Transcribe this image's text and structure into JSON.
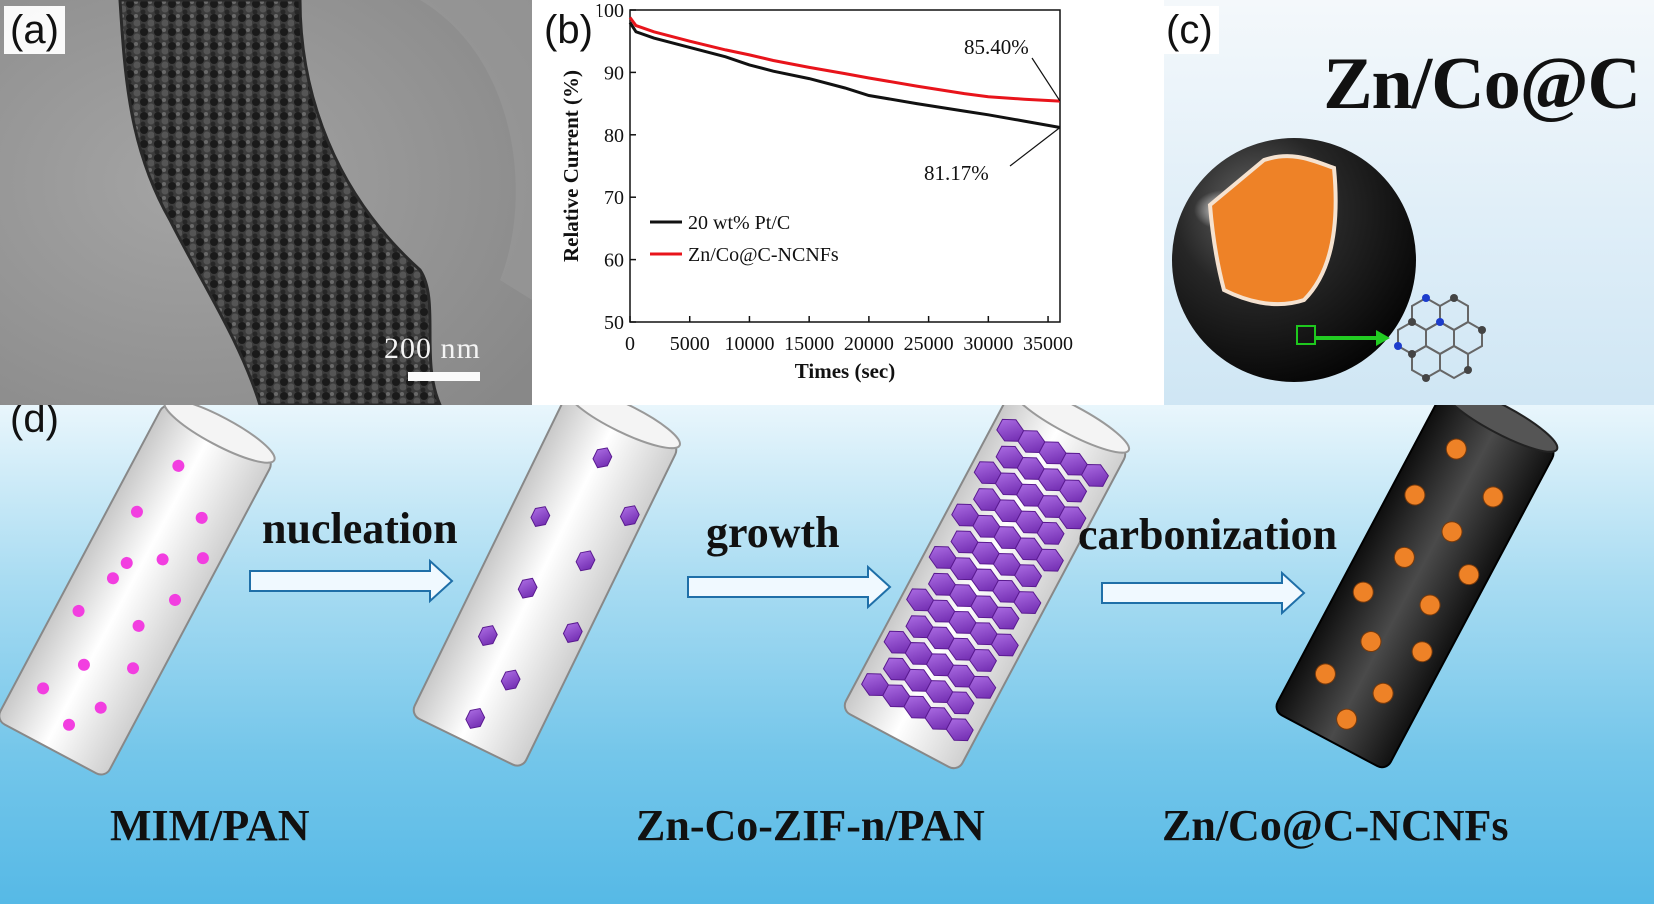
{
  "panels": {
    "a": {
      "label": "(a)",
      "scale_text": "200 nm"
    },
    "b": {
      "label": "(b)"
    },
    "c": {
      "label": "(c)",
      "title": "Zn/Co@C"
    },
    "d": {
      "label": "(d)",
      "steps": [
        "nucleation",
        "growth",
        "carbonization"
      ],
      "materials": [
        "MIM/PAN",
        "Zn-Co-ZIF-n/PAN",
        "Zn/Co@C-NCNFs"
      ]
    }
  },
  "chart_data": {
    "type": "line",
    "title": "",
    "xlabel": "Times (sec)",
    "ylabel": "Relative Current (%)",
    "xlim": [
      0,
      36000
    ],
    "ylim": [
      50,
      100
    ],
    "xticks": [
      0,
      5000,
      10000,
      15000,
      20000,
      25000,
      30000,
      35000
    ],
    "yticks": [
      50,
      60,
      70,
      80,
      90,
      100
    ],
    "legend": "bottom-left",
    "grid": false,
    "series": [
      {
        "name": "20 wt% Pt/C",
        "color": "#111111",
        "x": [
          0,
          500,
          2000,
          5000,
          8000,
          10000,
          12000,
          15000,
          18000,
          20000,
          24000,
          28000,
          30000,
          33000,
          36000
        ],
        "y": [
          98.0,
          96.5,
          95.5,
          94.0,
          92.5,
          91.2,
          90.2,
          89.0,
          87.5,
          86.3,
          85.0,
          83.8,
          83.2,
          82.2,
          81.17
        ]
      },
      {
        "name": "Zn/Co@C-NCNFs",
        "color": "#e8141b",
        "x": [
          0,
          500,
          2000,
          5000,
          8000,
          10000,
          12000,
          15000,
          18000,
          20000,
          24000,
          28000,
          30000,
          33000,
          36000
        ],
        "y": [
          98.8,
          97.5,
          96.5,
          95.0,
          93.6,
          92.8,
          91.9,
          90.8,
          89.8,
          89.1,
          87.8,
          86.6,
          86.1,
          85.7,
          85.4
        ]
      }
    ],
    "annotations": [
      "85.40%",
      "81.17%"
    ]
  },
  "colors": {
    "red_series": "#e8141b",
    "black_series": "#111111",
    "orange_core": "#ee8227",
    "zif_purple": "#8a3cc8",
    "mim_dot": "#f23ee0"
  }
}
